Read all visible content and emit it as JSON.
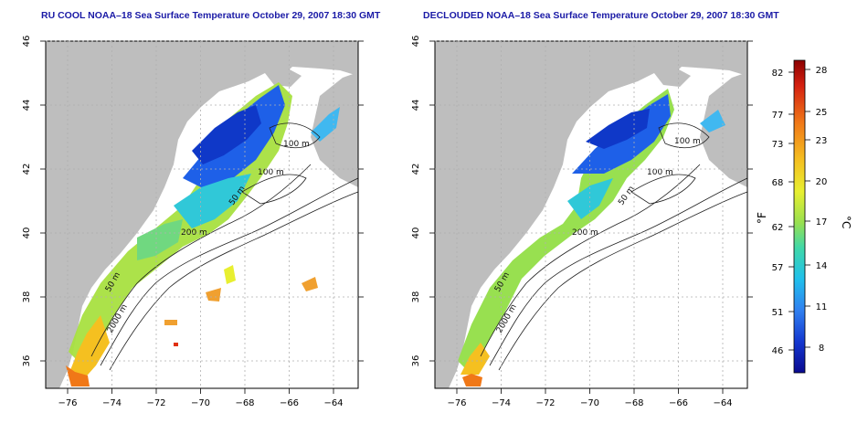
{
  "panels": [
    {
      "title": "RU COOL NOAA–18 Sea Surface Temperature October 29, 2007 18:30 GMT",
      "contour_labels": [
        "100 m",
        "100 m",
        "50 m",
        "200 m",
        "50 m",
        "2000 m"
      ]
    },
    {
      "title": "DECLOUDED NOAA–18 Sea Surface Temperature October 29, 2007 18:30 GMT",
      "contour_labels": [
        "100 m",
        "100 m",
        "50 m",
        "200 m",
        "50 m",
        "2000 m"
      ]
    }
  ],
  "axes": {
    "x_ticks": [
      "−76",
      "−74",
      "−72",
      "−70",
      "−68",
      "−66",
      "−64"
    ],
    "y_ticks": [
      "36",
      "38",
      "40",
      "42",
      "44",
      "46"
    ]
  },
  "colorbar": {
    "f_label": "°F",
    "c_label": "°C",
    "f_ticks": [
      "82",
      "77",
      "73",
      "68",
      "62",
      "57",
      "51",
      "46"
    ],
    "c_ticks": [
      "28",
      "25",
      "23",
      "20",
      "17",
      "14",
      "11",
      "8"
    ],
    "colors": [
      "#8b0000",
      "#e03010",
      "#f07818",
      "#f5c020",
      "#f0ef30",
      "#a8e040",
      "#40d8a0",
      "#20c8e8",
      "#3090f0",
      "#1040d8",
      "#0a0a90"
    ]
  },
  "colors": {
    "land": "#bebebe",
    "title": "#1a1aa6",
    "contour": "#202020",
    "grid": "#b0b0b0"
  }
}
